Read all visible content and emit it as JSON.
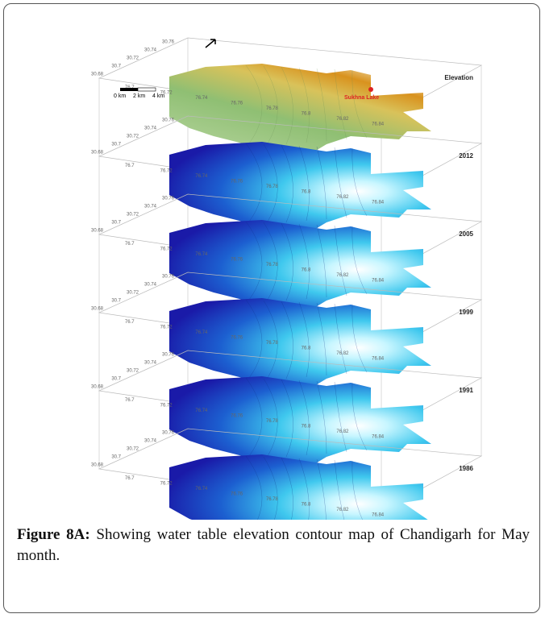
{
  "figure": {
    "layers": [
      {
        "label": "Elevation"
      },
      {
        "label": "2012"
      },
      {
        "label": "2005"
      },
      {
        "label": "1999"
      },
      {
        "label": "1991"
      },
      {
        "label": "1986"
      }
    ],
    "annotations": {
      "lake": "Sukhna Lake",
      "scale": [
        "0 km",
        "2 km",
        "4 km"
      ]
    },
    "latitude_ticks": [
      "30.68",
      "30.7",
      "30.72",
      "30.74",
      "30.76"
    ],
    "longitude_ticks": [
      "76.7",
      "76.72",
      "76.74",
      "76.76",
      "76.78",
      "76.8",
      "76.82",
      "76.84"
    ]
  },
  "caption": {
    "label": "Figure 8A:",
    "text": "Showing water table elevation contour map of Chandigarh for May month."
  }
}
